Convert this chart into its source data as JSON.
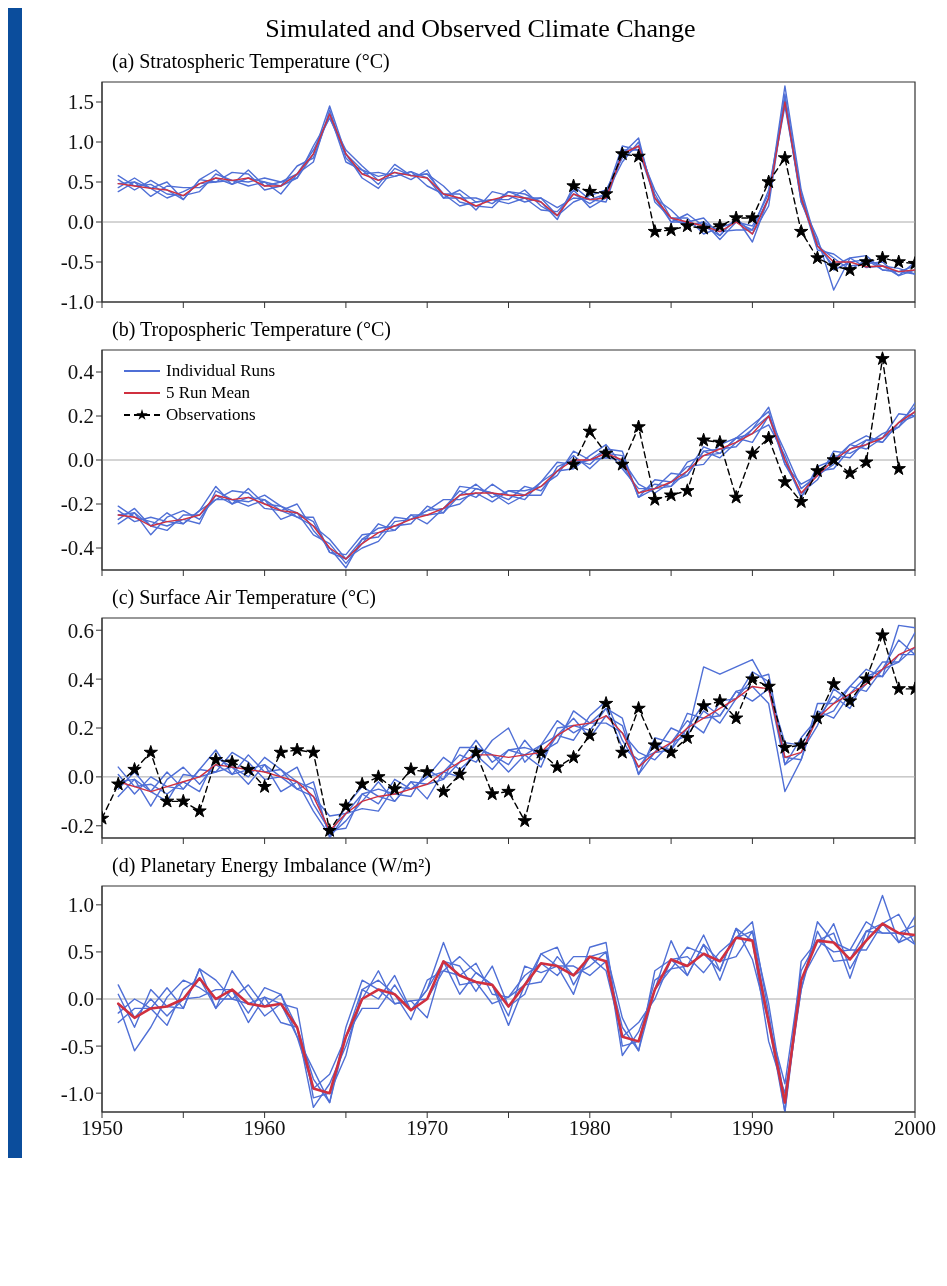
{
  "chart_data": [
    {
      "type": "line",
      "title": "Simulated and Observed Climate Change",
      "subtitle": "(a)  Stratospheric Temperature (°C)",
      "legend": false,
      "tick_labels": "y",
      "x": [
        1951,
        1952,
        1953,
        1954,
        1955,
        1956,
        1957,
        1958,
        1959,
        1960,
        1961,
        1962,
        1963,
        1964,
        1965,
        1966,
        1967,
        1968,
        1969,
        1970,
        1971,
        1972,
        1973,
        1974,
        1975,
        1976,
        1977,
        1978,
        1979,
        1980,
        1981,
        1982,
        1983,
        1984,
        1985,
        1986,
        1987,
        1988,
        1989,
        1990,
        1991,
        1992,
        1993,
        1994,
        1995,
        1996,
        1997,
        1998,
        1999,
        2000
      ],
      "xlim": [
        1950,
        2000
      ],
      "xticks": [
        1950,
        {
          "value": 1955,
          "label": null
        },
        1960,
        {
          "value": 1965,
          "label": null
        },
        1970,
        {
          "value": 1975,
          "label": null
        },
        1980,
        {
          "value": 1985,
          "label": null
        },
        1990,
        {
          "value": 1995,
          "label": null
        },
        2000
      ],
      "ylim": [
        -1.0,
        1.75
      ],
      "yticks": [
        {
          "value": -1,
          "label": "-1.0"
        },
        -0.5,
        {
          "value": 0,
          "label": "0.0"
        },
        0.5,
        {
          "value": 1,
          "label": "1.0"
        },
        1.5
      ],
      "ref_lines": [
        {
          "axis": "y",
          "value": 0,
          "label": null,
          "color": "#aaaaaa"
        }
      ],
      "series": [
        {
          "color": "#4f6fd6",
          "marker": "none",
          "line_style": "solid",
          "values": [
            0.53,
            0.4,
            0.52,
            0.4,
            0.28,
            0.53,
            0.65,
            0.47,
            0.55,
            0.5,
            0.35,
            0.6,
            0.9,
            1.3,
            0.9,
            0.7,
            0.52,
            0.57,
            0.63,
            0.45,
            0.35,
            0.35,
            0.15,
            0.38,
            0.33,
            0.25,
            0.3,
            0.08,
            0.25,
            0.33,
            0.4,
            0.8,
            0.95,
            0.35,
            0.0,
            0.1,
            -0.05,
            -0.17,
            0.05,
            -0.15,
            0.2,
            1.55,
            0.25,
            -0.2,
            -0.85,
            -0.45,
            -0.57,
            -0.55,
            -0.58,
            -0.65
          ]
        },
        {
          "color": "#4f6fd6",
          "marker": "none",
          "line_style": "solid",
          "values": [
            0.43,
            0.55,
            0.42,
            0.3,
            0.38,
            0.48,
            0.5,
            0.62,
            0.6,
            0.4,
            0.45,
            0.7,
            0.8,
            1.35,
            0.75,
            0.65,
            0.57,
            0.62,
            0.53,
            0.65,
            0.3,
            0.3,
            0.3,
            0.23,
            0.38,
            0.3,
            0.15,
            0.13,
            0.35,
            0.23,
            0.35,
            0.95,
            0.9,
            0.3,
            0.15,
            -0.05,
            0.0,
            -0.12,
            -0.1,
            -0.1,
            0.3,
            1.7,
            0.4,
            -0.3,
            -0.55,
            -0.45,
            -0.42,
            -0.6,
            -0.62,
            -0.55
          ]
        },
        {
          "color": "#4f6fd6",
          "marker": "none",
          "line_style": "solid",
          "values": [
            0.48,
            0.5,
            0.32,
            0.45,
            0.43,
            0.43,
            0.55,
            0.47,
            0.65,
            0.45,
            0.5,
            0.55,
            0.85,
            1.45,
            0.85,
            0.55,
            0.42,
            0.67,
            0.58,
            0.6,
            0.45,
            0.25,
            0.2,
            0.18,
            0.38,
            0.35,
            0.25,
            0.03,
            0.45,
            0.28,
            0.25,
            0.85,
            1.05,
            0.25,
            0.05,
            0.05,
            -0.15,
            -0.07,
            0.0,
            -0.05,
            0.35,
            1.45,
            0.3,
            -0.35,
            -0.4,
            -0.55,
            -0.52,
            -0.5,
            -0.67,
            -0.5
          ]
        },
        {
          "color": "#4f6fd6",
          "marker": "none",
          "line_style": "solid",
          "values": [
            0.58,
            0.45,
            0.47,
            0.35,
            0.33,
            0.38,
            0.6,
            0.52,
            0.5,
            0.55,
            0.5,
            0.6,
            0.75,
            1.4,
            0.8,
            0.6,
            0.62,
            0.57,
            0.63,
            0.55,
            0.3,
            0.4,
            0.25,
            0.28,
            0.23,
            0.3,
            0.3,
            0.18,
            0.3,
            0.28,
            0.35,
            0.75,
            1.0,
            0.3,
            0.0,
            0.0,
            0.05,
            -0.17,
            0.05,
            -0.25,
            0.3,
            1.6,
            0.35,
            -0.3,
            -0.45,
            -0.6,
            -0.47,
            -0.55,
            -0.67,
            -0.6
          ]
        },
        {
          "color": "#4f6fd6",
          "marker": "none",
          "line_style": "solid",
          "values": [
            0.38,
            0.5,
            0.42,
            0.5,
            0.28,
            0.53,
            0.5,
            0.52,
            0.45,
            0.5,
            0.45,
            0.55,
            0.95,
            1.3,
            0.85,
            0.65,
            0.47,
            0.72,
            0.58,
            0.6,
            0.35,
            0.2,
            0.25,
            0.28,
            0.28,
            0.4,
            0.2,
            0.08,
            0.4,
            0.18,
            0.3,
            0.9,
            0.9,
            0.4,
            0.05,
            -0.05,
            0.0,
            -0.22,
            0.0,
            -0.1,
            0.4,
            1.5,
            0.25,
            -0.25,
            -0.6,
            -0.5,
            -0.47,
            -0.6,
            -0.62,
            -0.65
          ]
        },
        {
          "color": "#d0303f",
          "marker": "none",
          "line_style": "solid",
          "values": [
            0.48,
            0.45,
            0.42,
            0.4,
            0.33,
            0.48,
            0.55,
            0.52,
            0.55,
            0.45,
            0.45,
            0.6,
            0.85,
            1.35,
            0.85,
            0.6,
            0.52,
            0.62,
            0.58,
            0.55,
            0.35,
            0.3,
            0.2,
            0.28,
            0.33,
            0.3,
            0.25,
            0.08,
            0.35,
            0.28,
            0.3,
            0.85,
            0.95,
            0.3,
            0.05,
            0.0,
            -0.05,
            -0.12,
            0.0,
            -0.15,
            0.3,
            1.5,
            0.3,
            -0.3,
            -0.5,
            -0.5,
            -0.56,
            -0.55,
            -0.62,
            -0.6
          ]
        },
        {
          "color": "#000000",
          "marker": "star",
          "line_style": "dashed",
          "x": [
            1979,
            1980,
            1981,
            1982,
            1983,
            1984,
            1985,
            1986,
            1987,
            1988,
            1989,
            1990,
            1991,
            1992,
            1993,
            1994,
            1995,
            1996,
            1997,
            1998,
            1999,
            2000
          ],
          "values": [
            0.45,
            0.38,
            0.35,
            0.85,
            0.82,
            -0.12,
            -0.1,
            -0.05,
            -0.08,
            -0.05,
            0.05,
            0.05,
            0.5,
            0.8,
            -0.12,
            -0.45,
            -0.55,
            -0.6,
            -0.5,
            -0.45,
            -0.5,
            -0.52
          ]
        }
      ]
    },
    {
      "type": "line",
      "subtitle": "(b)  Tropospheric Temperature (°C)",
      "legend": "top left",
      "tick_labels": "y",
      "x": [
        1951,
        1952,
        1953,
        1954,
        1955,
        1956,
        1957,
        1958,
        1959,
        1960,
        1961,
        1962,
        1963,
        1964,
        1965,
        1966,
        1967,
        1968,
        1969,
        1970,
        1971,
        1972,
        1973,
        1974,
        1975,
        1976,
        1977,
        1978,
        1979,
        1980,
        1981,
        1982,
        1983,
        1984,
        1985,
        1986,
        1987,
        1988,
        1989,
        1990,
        1991,
        1992,
        1993,
        1994,
        1995,
        1996,
        1997,
        1998,
        1999,
        2000
      ],
      "xlim": [
        1950,
        2000
      ],
      "xticks": [
        1950,
        {
          "value": 1955,
          "label": null
        },
        1960,
        {
          "value": 1965,
          "label": null
        },
        1970,
        {
          "value": 1975,
          "label": null
        },
        1980,
        {
          "value": 1985,
          "label": null
        },
        1990,
        {
          "value": 1995,
          "label": null
        },
        2000
      ],
      "ylim": [
        -0.5,
        0.5
      ],
      "yticks": [
        -0.4,
        -0.2,
        {
          "value": 0,
          "label": "0.0"
        },
        0.2,
        0.4
      ],
      "ref_lines": [
        {
          "axis": "y",
          "value": 0,
          "label": null,
          "color": "#aaaaaa"
        }
      ],
      "series": [
        {
          "name": "Individual Runs",
          "color": "#4f6fd6",
          "marker": "none",
          "line_style": "solid",
          "values": [
            -0.23,
            -0.28,
            -0.26,
            -0.28,
            -0.29,
            -0.23,
            -0.12,
            -0.2,
            -0.17,
            -0.18,
            -0.27,
            -0.24,
            -0.28,
            -0.42,
            -0.43,
            -0.34,
            -0.33,
            -0.32,
            -0.25,
            -0.29,
            -0.22,
            -0.14,
            -0.17,
            -0.11,
            -0.16,
            -0.18,
            -0.1,
            -0.05,
            -0.04,
            0.02,
            0.07,
            -0.02,
            -0.15,
            -0.11,
            -0.12,
            -0.01,
            0.02,
            0.03,
            0.1,
            0.12,
            0.16,
            0.02,
            -0.17,
            -0.03,
            0.0,
            0.07,
            0.05,
            0.1,
            0.21,
            0.2
          ]
        },
        {
          "color": "#4f6fd6",
          "marker": "none",
          "line_style": "solid",
          "values": [
            -0.27,
            -0.22,
            -0.3,
            -0.32,
            -0.25,
            -0.25,
            -0.18,
            -0.14,
            -0.15,
            -0.22,
            -0.23,
            -0.2,
            -0.32,
            -0.4,
            -0.49,
            -0.36,
            -0.31,
            -0.3,
            -0.29,
            -0.21,
            -0.24,
            -0.16,
            -0.11,
            -0.17,
            -0.14,
            -0.16,
            -0.16,
            -0.03,
            0.0,
            -0.02,
            0.05,
            0.04,
            -0.17,
            -0.13,
            -0.06,
            -0.07,
            0.04,
            0.05,
            0.06,
            0.14,
            0.2,
            -0.02,
            -0.11,
            -0.07,
            -0.02,
            0.07,
            0.11,
            0.08,
            0.17,
            0.24
          ]
        },
        {
          "color": "#4f6fd6",
          "marker": "none",
          "line_style": "solid",
          "values": [
            -0.25,
            -0.24,
            -0.34,
            -0.26,
            -0.23,
            -0.27,
            -0.16,
            -0.2,
            -0.13,
            -0.2,
            -0.21,
            -0.26,
            -0.3,
            -0.36,
            -0.45,
            -0.4,
            -0.37,
            -0.28,
            -0.27,
            -0.23,
            -0.18,
            -0.18,
            -0.15,
            -0.19,
            -0.14,
            -0.14,
            -0.12,
            -0.07,
            0.04,
            0.0,
            0.01,
            0.0,
            -0.11,
            -0.15,
            -0.1,
            -0.03,
            -0.02,
            0.07,
            0.1,
            0.16,
            0.22,
            -0.02,
            -0.15,
            -0.09,
            0.04,
            0.03,
            0.07,
            0.12,
            0.15,
            0.26
          ]
        },
        {
          "color": "#4f6fd6",
          "marker": "none",
          "line_style": "solid",
          "values": [
            -0.21,
            -0.26,
            -0.28,
            -0.3,
            -0.27,
            -0.29,
            -0.14,
            -0.18,
            -0.19,
            -0.16,
            -0.21,
            -0.24,
            -0.34,
            -0.38,
            -0.47,
            -0.38,
            -0.29,
            -0.32,
            -0.25,
            -0.25,
            -0.24,
            -0.12,
            -0.13,
            -0.15,
            -0.2,
            -0.16,
            -0.1,
            -0.01,
            -0.02,
            0.0,
            0.05,
            -0.04,
            -0.13,
            -0.13,
            -0.12,
            -0.05,
            0.06,
            0.03,
            0.1,
            0.08,
            0.2,
            0.04,
            -0.13,
            -0.07,
            0.02,
            0.01,
            0.09,
            0.1,
            0.15,
            0.22
          ]
        },
        {
          "color": "#4f6fd6",
          "marker": "none",
          "line_style": "solid",
          "values": [
            -0.29,
            -0.24,
            -0.3,
            -0.24,
            -0.29,
            -0.23,
            -0.18,
            -0.18,
            -0.21,
            -0.18,
            -0.23,
            -0.26,
            -0.26,
            -0.42,
            -0.45,
            -0.36,
            -0.35,
            -0.26,
            -0.27,
            -0.23,
            -0.22,
            -0.2,
            -0.13,
            -0.15,
            -0.18,
            -0.12,
            -0.14,
            -0.05,
            0.02,
            -0.04,
            0.03,
            0.02,
            -0.17,
            -0.09,
            -0.1,
            -0.07,
            0.04,
            0.01,
            0.08,
            0.14,
            0.24,
            0.0,
            -0.17,
            -0.05,
            -0.04,
            0.05,
            0.09,
            0.08,
            0.17,
            0.2
          ]
        },
        {
          "name": "5 Run Mean",
          "color": "#d0303f",
          "marker": "none",
          "line_style": "solid",
          "values": [
            -0.25,
            -0.26,
            -0.3,
            -0.28,
            -0.27,
            -0.25,
            -0.16,
            -0.18,
            -0.17,
            -0.2,
            -0.23,
            -0.24,
            -0.3,
            -0.4,
            -0.45,
            -0.38,
            -0.33,
            -0.3,
            -0.27,
            -0.25,
            -0.22,
            -0.16,
            -0.15,
            -0.15,
            -0.16,
            -0.16,
            -0.12,
            -0.05,
            0.0,
            0.0,
            0.03,
            0.0,
            -0.15,
            -0.13,
            -0.1,
            -0.05,
            0.02,
            0.05,
            0.08,
            0.12,
            0.2,
            0.0,
            -0.15,
            -0.07,
            0.0,
            0.05,
            0.07,
            0.1,
            0.17,
            0.22
          ]
        },
        {
          "name": "Observations",
          "color": "#000000",
          "marker": "star",
          "line_style": "dashed",
          "x": [
            1979,
            1980,
            1981,
            1982,
            1983,
            1984,
            1985,
            1986,
            1987,
            1988,
            1989,
            1990,
            1991,
            1992,
            1993,
            1994,
            1995,
            1996,
            1997,
            1998,
            1999
          ],
          "values": [
            -0.02,
            0.13,
            0.03,
            -0.02,
            0.15,
            -0.18,
            -0.16,
            -0.14,
            0.09,
            0.08,
            -0.17,
            0.03,
            0.1,
            -0.1,
            -0.19,
            -0.05,
            0.0,
            -0.06,
            -0.01,
            0.46,
            -0.04
          ]
        }
      ]
    },
    {
      "type": "line",
      "subtitle": "(c)  Surface Air Temperature (°C)",
      "legend": false,
      "tick_labels": "y",
      "x": [
        1951,
        1952,
        1953,
        1954,
        1955,
        1956,
        1957,
        1958,
        1959,
        1960,
        1961,
        1962,
        1963,
        1964,
        1965,
        1966,
        1967,
        1968,
        1969,
        1970,
        1971,
        1972,
        1973,
        1974,
        1975,
        1976,
        1977,
        1978,
        1979,
        1980,
        1981,
        1982,
        1983,
        1984,
        1985,
        1986,
        1987,
        1988,
        1989,
        1990,
        1991,
        1992,
        1993,
        1994,
        1995,
        1996,
        1997,
        1998,
        1999,
        2000
      ],
      "xlim": [
        1950,
        2000
      ],
      "xticks": [
        1950,
        {
          "value": 1955,
          "label": null
        },
        1960,
        {
          "value": 1965,
          "label": null
        },
        1970,
        {
          "value": 1975,
          "label": null
        },
        1980,
        {
          "value": 1985,
          "label": null
        },
        1990,
        {
          "value": 1995,
          "label": null
        },
        2000
      ],
      "ylim": [
        -0.25,
        0.65
      ],
      "yticks": [
        -0.2,
        {
          "value": 0,
          "label": "0.0"
        },
        0.2,
        0.4,
        0.6
      ],
      "ref_lines": [
        {
          "axis": "y",
          "value": 0,
          "label": null,
          "color": "#aaaaaa"
        }
      ],
      "series": [
        {
          "color": "#4f6fd6",
          "marker": "none",
          "line_style": "solid",
          "values": [
            0.01,
            -0.07,
            0.0,
            -0.04,
            -0.05,
            0.03,
            0.11,
            0.01,
            0.03,
            0.05,
            -0.06,
            -0.02,
            -0.05,
            -0.24,
            -0.12,
            -0.04,
            -0.08,
            -0.1,
            -0.02,
            -0.09,
            0.02,
            0.09,
            0.06,
            0.15,
            0.2,
            0.06,
            0.13,
            0.17,
            0.15,
            0.25,
            0.31,
            0.15,
            0.04,
            0.13,
            0.11,
            0.26,
            0.24,
            0.25,
            0.35,
            0.37,
            0.3,
            -0.06,
            0.07,
            0.3,
            0.3,
            0.37,
            0.35,
            0.44,
            0.56,
            0.5
          ]
        },
        {
          "color": "#4f6fd6",
          "marker": "none",
          "line_style": "solid",
          "values": [
            -0.05,
            0.02,
            -0.06,
            -0.1,
            0.01,
            0.0,
            0.02,
            0.1,
            0.06,
            -0.01,
            0.0,
            0.04,
            -0.11,
            -0.22,
            -0.21,
            -0.07,
            -0.05,
            -0.07,
            -0.08,
            0.03,
            -0.01,
            0.06,
            0.15,
            0.06,
            0.11,
            0.09,
            0.04,
            0.2,
            0.21,
            0.19,
            0.28,
            0.24,
            0.01,
            0.1,
            0.2,
            0.17,
            0.45,
            0.42,
            0.45,
            0.48,
            0.36,
            0.05,
            0.16,
            0.24,
            0.27,
            0.37,
            0.44,
            0.41,
            0.62,
            0.61
          ]
        },
        {
          "color": "#4f6fd6",
          "marker": "none",
          "line_style": "solid",
          "values": [
            -0.02,
            -0.01,
            -0.12,
            -0.01,
            0.04,
            -0.03,
            0.05,
            0.01,
            0.09,
            0.02,
            0.03,
            -0.05,
            -0.08,
            -0.16,
            -0.15,
            -0.13,
            -0.14,
            -0.04,
            -0.05,
            0.0,
            0.08,
            0.03,
            0.09,
            0.03,
            0.11,
            0.12,
            0.1,
            0.14,
            0.27,
            0.22,
            0.22,
            0.18,
            0.1,
            0.07,
            0.14,
            0.23,
            0.18,
            0.31,
            0.32,
            0.43,
            0.39,
            0.05,
            0.1,
            0.21,
            0.36,
            0.31,
            0.38,
            0.47,
            0.47,
            0.59
          ]
        },
        {
          "color": "#4f6fd6",
          "marker": "none",
          "line_style": "solid",
          "values": [
            0.04,
            -0.04,
            -0.03,
            -0.07,
            -0.02,
            -0.06,
            0.08,
            0.04,
            0.0,
            0.08,
            0.03,
            -0.02,
            -0.14,
            -0.24,
            -0.18,
            -0.1,
            -0.02,
            -0.1,
            -0.02,
            -0.03,
            -0.01,
            0.12,
            0.12,
            0.09,
            0.02,
            0.09,
            0.13,
            0.23,
            0.18,
            0.22,
            0.28,
            0.12,
            0.07,
            0.1,
            0.11,
            0.2,
            0.3,
            0.25,
            0.35,
            0.31,
            0.36,
            0.14,
            0.13,
            0.24,
            0.33,
            0.28,
            0.41,
            0.44,
            0.47,
            0.53
          ]
        },
        {
          "color": "#4f6fd6",
          "marker": "none",
          "line_style": "solid",
          "values": [
            -0.08,
            -0.01,
            -0.06,
            0.02,
            -0.05,
            0.03,
            0.02,
            0.04,
            -0.03,
            0.05,
            0.0,
            -0.05,
            -0.02,
            -0.25,
            -0.15,
            -0.07,
            -0.11,
            -0.01,
            -0.05,
            0.0,
            0.02,
            0.0,
            0.12,
            0.09,
            0.05,
            0.15,
            0.07,
            0.17,
            0.24,
            0.16,
            0.25,
            0.21,
            0.01,
            0.16,
            0.14,
            0.17,
            0.27,
            0.22,
            0.32,
            0.4,
            0.42,
            0.08,
            0.07,
            0.27,
            0.24,
            0.34,
            0.41,
            0.41,
            0.5,
            0.5
          ]
        },
        {
          "color": "#d0303f",
          "marker": "none",
          "line_style": "solid",
          "values": [
            -0.02,
            -0.04,
            -0.06,
            -0.04,
            -0.02,
            0.0,
            0.05,
            0.04,
            0.03,
            0.02,
            0.0,
            -0.02,
            -0.08,
            -0.22,
            -0.15,
            -0.1,
            -0.08,
            -0.07,
            -0.05,
            -0.03,
            0.02,
            0.06,
            0.09,
            0.09,
            0.08,
            0.09,
            0.1,
            0.17,
            0.21,
            0.22,
            0.25,
            0.18,
            0.04,
            0.1,
            0.14,
            0.2,
            0.24,
            0.28,
            0.32,
            0.37,
            0.36,
            0.08,
            0.1,
            0.24,
            0.3,
            0.34,
            0.38,
            0.44,
            0.5,
            0.53
          ]
        },
        {
          "color": "#000000",
          "marker": "star",
          "line_style": "dashed",
          "x": [
            1950,
            1951,
            1952,
            1953,
            1954,
            1955,
            1956,
            1957,
            1958,
            1959,
            1960,
            1961,
            1962,
            1963,
            1964,
            1965,
            1966,
            1967,
            1968,
            1969,
            1970,
            1971,
            1972,
            1973,
            1974,
            1975,
            1976,
            1977,
            1978,
            1979,
            1980,
            1981,
            1982,
            1983,
            1984,
            1985,
            1986,
            1987,
            1988,
            1989,
            1990,
            1991,
            1992,
            1993,
            1994,
            1995,
            1996,
            1997,
            1998,
            1999,
            2000
          ],
          "values": [
            -0.17,
            -0.03,
            0.03,
            0.1,
            -0.1,
            -0.1,
            -0.14,
            0.07,
            0.06,
            0.03,
            -0.04,
            0.1,
            0.11,
            0.1,
            -0.22,
            -0.12,
            -0.03,
            0.0,
            -0.05,
            0.03,
            0.02,
            -0.06,
            0.01,
            0.1,
            -0.07,
            -0.06,
            -0.18,
            0.1,
            0.04,
            0.08,
            0.17,
            0.3,
            0.1,
            0.28,
            0.13,
            0.1,
            0.16,
            0.29,
            0.31,
            0.24,
            0.4,
            0.37,
            0.12,
            0.13,
            0.24,
            0.38,
            0.31,
            0.4,
            0.58,
            0.36,
            0.36
          ]
        }
      ]
    },
    {
      "type": "line",
      "subtitle": "(d)  Planetary Energy Imbalance (W/m²)",
      "legend": false,
      "x": [
        1951,
        1952,
        1953,
        1954,
        1955,
        1956,
        1957,
        1958,
        1959,
        1960,
        1961,
        1962,
        1963,
        1964,
        1965,
        1966,
        1967,
        1968,
        1969,
        1970,
        1971,
        1972,
        1973,
        1974,
        1975,
        1976,
        1977,
        1978,
        1979,
        1980,
        1981,
        1982,
        1983,
        1984,
        1985,
        1986,
        1987,
        1988,
        1989,
        1990,
        1991,
        1992,
        1993,
        1994,
        1995,
        1996,
        1997,
        1998,
        1999,
        2000
      ],
      "xlim": [
        1950,
        2000
      ],
      "xticks": [
        1950,
        {
          "value": 1955,
          "label": null
        },
        1960,
        {
          "value": 1965,
          "label": null
        },
        1970,
        {
          "value": 1975,
          "label": null
        },
        1980,
        {
          "value": 1985,
          "label": null
        },
        1990,
        {
          "value": 1995,
          "label": null
        },
        2000
      ],
      "ylim": [
        -1.2,
        1.2
      ],
      "yticks": [
        {
          "value": -1,
          "label": "-1.0"
        },
        -0.5,
        {
          "value": 0,
          "label": "0.0"
        },
        0.5,
        {
          "value": 1,
          "label": "1.0"
        }
      ],
      "ref_lines": [
        {
          "axis": "y",
          "value": 0,
          "label": null,
          "color": "#aaaaaa"
        }
      ],
      "series": [
        {
          "color": "#4f6fd6",
          "marker": "none",
          "line_style": "solid",
          "values": [
            0.05,
            -0.3,
            0.1,
            -0.08,
            -0.1,
            0.32,
            0.2,
            0.0,
            -0.05,
            0.02,
            -0.25,
            -0.3,
            -0.85,
            -1.1,
            -0.3,
            0.2,
            0.1,
            -0.05,
            -0.02,
            -0.2,
            0.4,
            0.35,
            0.08,
            0.35,
            -0.08,
            0.05,
            0.48,
            0.35,
            0.05,
            0.55,
            0.6,
            -0.5,
            -0.45,
            0.2,
            0.32,
            0.55,
            0.48,
            0.3,
            0.75,
            0.62,
            -0.45,
            -1.0,
            0.1,
            0.82,
            0.6,
            0.52,
            0.52,
            0.8,
            0.9,
            0.58
          ]
        },
        {
          "color": "#4f6fd6",
          "marker": "none",
          "line_style": "solid",
          "values": [
            -0.15,
            0.0,
            -0.1,
            -0.28,
            0.1,
            0.22,
            -0.1,
            0.3,
            0.05,
            -0.18,
            -0.05,
            -0.1,
            -1.05,
            -1.0,
            -0.6,
            0.1,
            0.2,
            0.05,
            -0.22,
            0.2,
            0.3,
            0.25,
            0.38,
            0.05,
            0.02,
            0.15,
            0.18,
            0.45,
            0.25,
            0.35,
            0.5,
            -0.2,
            -0.55,
            0.1,
            0.62,
            0.25,
            0.58,
            0.4,
            0.45,
            0.72,
            -0.25,
            -1.2,
            0.4,
            0.62,
            0.5,
            0.52,
            0.82,
            0.7,
            0.7,
            0.78
          ]
        },
        {
          "color": "#4f6fd6",
          "marker": "none",
          "line_style": "solid",
          "values": [
            -0.05,
            -0.55,
            -0.3,
            0.02,
            0.2,
            0.12,
            0.0,
            0.0,
            0.15,
            -0.08,
            0.05,
            -0.4,
            -0.95,
            -0.8,
            -0.4,
            -0.1,
            -0.1,
            0.15,
            -0.12,
            0.1,
            0.6,
            0.15,
            0.18,
            -0.05,
            0.02,
            0.25,
            0.38,
            0.25,
            0.45,
            0.45,
            0.3,
            -0.4,
            -0.25,
            0.0,
            0.42,
            0.45,
            0.28,
            0.5,
            0.65,
            0.82,
            -0.15,
            -1.2,
            0.2,
            0.52,
            0.8,
            0.32,
            0.62,
            1.1,
            0.6,
            0.88
          ]
        },
        {
          "color": "#4f6fd6",
          "marker": "none",
          "line_style": "solid",
          "values": [
            0.15,
            -0.2,
            0.0,
            -0.18,
            0.0,
            0.02,
            0.1,
            0.1,
            -0.15,
            0.12,
            0.05,
            -0.3,
            -1.15,
            -0.9,
            -0.5,
            0.0,
            0.3,
            -0.05,
            -0.02,
            0.0,
            0.3,
            0.45,
            0.28,
            0.15,
            -0.28,
            0.15,
            0.48,
            0.55,
            0.15,
            0.45,
            0.5,
            -0.6,
            -0.35,
            0.1,
            0.32,
            0.35,
            0.68,
            0.3,
            0.75,
            0.42,
            -0.25,
            -0.9,
            0.3,
            0.62,
            0.7,
            0.22,
            0.72,
            0.8,
            0.6,
            0.68
          ]
        },
        {
          "color": "#4f6fd6",
          "marker": "none",
          "line_style": "solid",
          "values": [
            -0.25,
            -0.1,
            -0.1,
            0.12,
            -0.1,
            0.32,
            -0.1,
            0.1,
            -0.25,
            0.02,
            -0.05,
            -0.4,
            -0.75,
            -1.1,
            -0.4,
            0.1,
            0.0,
            0.25,
            -0.12,
            0.1,
            0.4,
            0.05,
            0.28,
            0.15,
            -0.18,
            0.35,
            0.28,
            0.35,
            0.35,
            0.25,
            0.4,
            -0.3,
            -0.55,
            0.3,
            0.42,
            0.25,
            0.58,
            0.2,
            0.65,
            0.72,
            -0.05,
            -1.1,
            0.1,
            0.72,
            0.4,
            0.42,
            0.72,
            0.7,
            0.7,
            0.58
          ]
        },
        {
          "color": "#d0303f",
          "marker": "none",
          "line_style": "solid",
          "values": [
            -0.05,
            -0.2,
            -0.1,
            -0.08,
            0.0,
            0.22,
            0.0,
            0.1,
            -0.05,
            -0.08,
            -0.05,
            -0.3,
            -0.95,
            -1.0,
            -0.4,
            0.0,
            0.1,
            0.05,
            -0.12,
            0.0,
            0.4,
            0.25,
            0.18,
            0.15,
            -0.08,
            0.15,
            0.38,
            0.35,
            0.25,
            0.45,
            0.4,
            -0.4,
            -0.45,
            0.1,
            0.42,
            0.35,
            0.48,
            0.4,
            0.65,
            0.62,
            -0.25,
            -1.1,
            0.2,
            0.62,
            0.6,
            0.42,
            0.62,
            0.8,
            0.7,
            0.68
          ]
        }
      ]
    }
  ]
}
